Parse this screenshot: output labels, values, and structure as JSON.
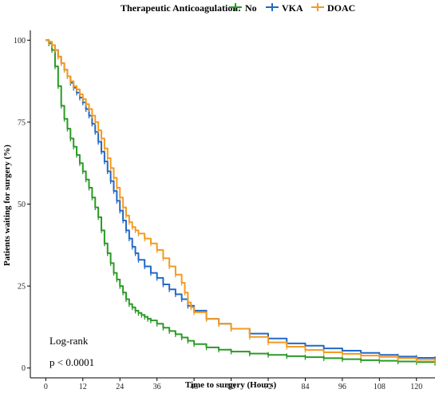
{
  "chart_data": {
    "type": "line",
    "title": "",
    "xlabel": "Time to surgery (Hours)",
    "ylabel": "Patients waiting for surgery (%)",
    "xlim": [
      -5,
      126
    ],
    "ylim": [
      -3,
      103
    ],
    "x_ticks": [
      0,
      12,
      24,
      36,
      48,
      60,
      72,
      84,
      96,
      108,
      120
    ],
    "y_ticks": [
      0,
      25,
      50,
      75,
      100
    ],
    "grid": false,
    "legend": {
      "title": "Therapeutic Anticoagulation:",
      "placement": "top"
    },
    "annotations": [
      "Log-rank",
      "p < 0.0001"
    ],
    "series": [
      {
        "name": "No",
        "color": "#2a9a26",
        "points": [
          [
            0,
            100
          ],
          [
            1,
            99
          ],
          [
            2,
            97
          ],
          [
            3,
            92
          ],
          [
            4,
            86
          ],
          [
            5,
            80
          ],
          [
            6,
            76
          ],
          [
            7,
            73
          ],
          [
            8,
            70
          ],
          [
            9,
            67.5
          ],
          [
            10,
            65
          ],
          [
            11,
            62.5
          ],
          [
            12,
            60
          ],
          [
            13,
            57.5
          ],
          [
            14,
            55
          ],
          [
            15,
            52
          ],
          [
            16,
            49
          ],
          [
            17,
            46
          ],
          [
            18,
            42
          ],
          [
            19,
            38
          ],
          [
            20,
            35
          ],
          [
            21,
            32
          ],
          [
            22,
            29
          ],
          [
            23,
            27
          ],
          [
            24,
            25
          ],
          [
            25,
            23
          ],
          [
            26,
            21
          ],
          [
            27,
            19.5
          ],
          [
            28,
            18.5
          ],
          [
            29,
            17.5
          ],
          [
            30,
            16.8
          ],
          [
            31,
            16.2
          ],
          [
            32,
            15.6
          ],
          [
            33,
            15
          ],
          [
            34,
            14.5
          ],
          [
            36,
            13.5
          ],
          [
            38,
            12.3
          ],
          [
            40,
            11.3
          ],
          [
            42,
            10.3
          ],
          [
            44,
            9.3
          ],
          [
            46,
            8.3
          ],
          [
            48,
            7.3
          ],
          [
            52,
            6.3
          ],
          [
            56,
            5.6
          ],
          [
            60,
            5
          ],
          [
            66,
            4.4
          ],
          [
            72,
            4
          ],
          [
            78,
            3.6
          ],
          [
            84,
            3.3
          ],
          [
            90,
            3
          ],
          [
            96,
            2.7
          ],
          [
            102,
            2.4
          ],
          [
            108,
            2.2
          ],
          [
            114,
            2
          ],
          [
            120,
            1.8
          ],
          [
            126,
            1.6
          ]
        ]
      },
      {
        "name": "VKA",
        "color": "#2369c6",
        "points": [
          [
            0,
            100
          ],
          [
            1,
            99.5
          ],
          [
            2,
            98.5
          ],
          [
            3,
            97
          ],
          [
            4,
            95
          ],
          [
            5,
            93
          ],
          [
            6,
            91
          ],
          [
            7,
            89
          ],
          [
            8,
            87
          ],
          [
            9,
            85.5
          ],
          [
            10,
            84
          ],
          [
            11,
            82.5
          ],
          [
            12,
            81
          ],
          [
            13,
            79
          ],
          [
            14,
            77
          ],
          [
            15,
            74.5
          ],
          [
            16,
            72
          ],
          [
            17,
            69
          ],
          [
            18,
            66
          ],
          [
            19,
            63
          ],
          [
            20,
            60
          ],
          [
            21,
            57
          ],
          [
            22,
            54
          ],
          [
            23,
            51
          ],
          [
            24,
            48
          ],
          [
            25,
            45
          ],
          [
            26,
            42
          ],
          [
            27,
            39.5
          ],
          [
            28,
            37
          ],
          [
            29,
            35
          ],
          [
            30,
            33
          ],
          [
            32,
            31
          ],
          [
            34,
            29
          ],
          [
            36,
            27.5
          ],
          [
            38,
            25.5
          ],
          [
            40,
            24
          ],
          [
            42,
            22.5
          ],
          [
            44,
            21
          ],
          [
            46,
            19
          ],
          [
            48,
            17.5
          ],
          [
            52,
            15
          ],
          [
            56,
            13.5
          ],
          [
            60,
            12
          ],
          [
            66,
            10.5
          ],
          [
            72,
            9
          ],
          [
            78,
            7.5
          ],
          [
            84,
            6.8
          ],
          [
            90,
            6
          ],
          [
            96,
            5.3
          ],
          [
            102,
            4.6
          ],
          [
            108,
            4
          ],
          [
            114,
            3.5
          ],
          [
            120,
            3.1
          ],
          [
            126,
            2.7
          ]
        ]
      },
      {
        "name": "DOAC",
        "color": "#f29b22",
        "points": [
          [
            0,
            100
          ],
          [
            1,
            99.5
          ],
          [
            2,
            98.5
          ],
          [
            3,
            97
          ],
          [
            4,
            95
          ],
          [
            5,
            93
          ],
          [
            6,
            91
          ],
          [
            7,
            89
          ],
          [
            8,
            87.5
          ],
          [
            9,
            86
          ],
          [
            10,
            85
          ],
          [
            11,
            83.5
          ],
          [
            12,
            82
          ],
          [
            13,
            80.5
          ],
          [
            14,
            79
          ],
          [
            15,
            77
          ],
          [
            16,
            75
          ],
          [
            17,
            72.5
          ],
          [
            18,
            70
          ],
          [
            19,
            67
          ],
          [
            20,
            64
          ],
          [
            21,
            61
          ],
          [
            22,
            58
          ],
          [
            23,
            55
          ],
          [
            24,
            52
          ],
          [
            25,
            49
          ],
          [
            26,
            46.5
          ],
          [
            27,
            44.5
          ],
          [
            28,
            43
          ],
          [
            29,
            42
          ],
          [
            30,
            41
          ],
          [
            32,
            39.5
          ],
          [
            34,
            38
          ],
          [
            36,
            36
          ],
          [
            38,
            33.5
          ],
          [
            40,
            31
          ],
          [
            42,
            28.5
          ],
          [
            44,
            26
          ],
          [
            45,
            23
          ],
          [
            46,
            20
          ],
          [
            47,
            18.5
          ],
          [
            48,
            17
          ],
          [
            52,
            15
          ],
          [
            56,
            13.5
          ],
          [
            60,
            12
          ],
          [
            66,
            9.5
          ],
          [
            72,
            7.8
          ],
          [
            78,
            6.5
          ],
          [
            84,
            5.5
          ],
          [
            90,
            4.8
          ],
          [
            96,
            4.3
          ],
          [
            102,
            3.8
          ],
          [
            108,
            3.4
          ],
          [
            114,
            3
          ],
          [
            120,
            2.5
          ],
          [
            126,
            2.2
          ]
        ]
      }
    ]
  }
}
